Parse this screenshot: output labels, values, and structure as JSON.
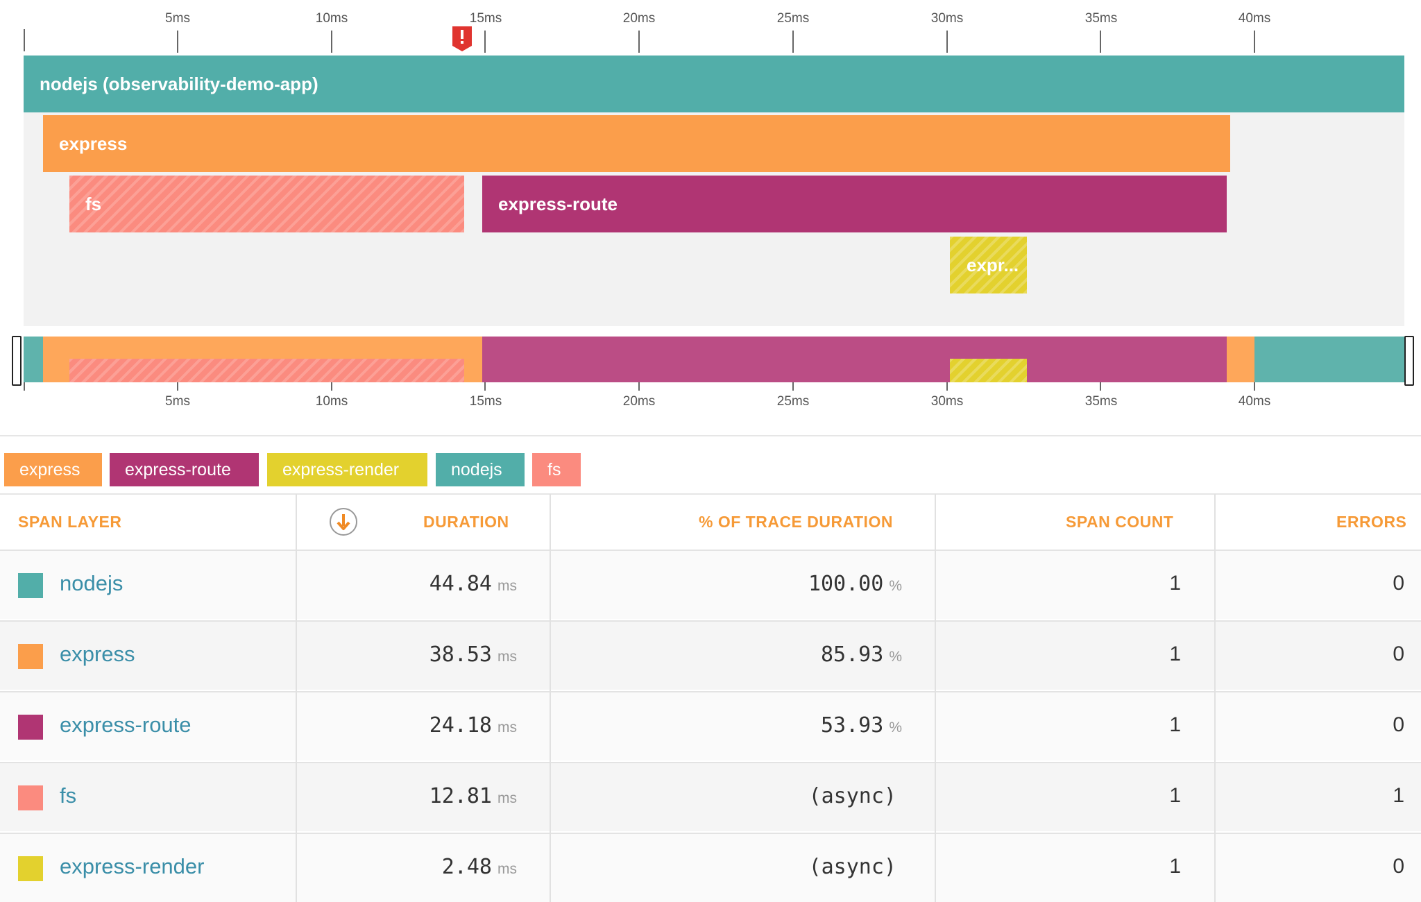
{
  "timeline": {
    "top_ticks": [
      "5ms",
      "10ms",
      "15ms",
      "20ms",
      "25ms",
      "30ms",
      "35ms",
      "40ms"
    ],
    "bottom_ticks": [
      "5ms",
      "10ms",
      "15ms",
      "20ms",
      "25ms",
      "30ms",
      "35ms",
      "40ms"
    ],
    "error_marker": "!"
  },
  "spans": {
    "nodejs": "nodejs (observability-demo-app)",
    "express": "express",
    "fs": "fs",
    "express_route": "express-route",
    "express_render": "expr..."
  },
  "legend": [
    {
      "label": "express",
      "color": "#fb9e4b"
    },
    {
      "label": "express-route",
      "color": "#b03573"
    },
    {
      "label": "express-render",
      "color": "#e3d12e"
    },
    {
      "label": "nodejs",
      "color": "#52aea9"
    },
    {
      "label": "fs",
      "color": "#fb8b7f"
    }
  ],
  "table": {
    "headers": {
      "span_layer": "SPAN LAYER",
      "duration": "DURATION",
      "pct": "% OF TRACE DURATION",
      "span_count": "SPAN COUNT",
      "errors": "ERRORS"
    },
    "rows": [
      {
        "name": "nodejs",
        "color": "#52aea9",
        "duration": "44.84",
        "duration_unit": "ms",
        "pct": "100.00",
        "pct_unit": "%",
        "span_count": "1",
        "errors": "0"
      },
      {
        "name": "express",
        "color": "#fb9e4b",
        "duration": "38.53",
        "duration_unit": "ms",
        "pct": "85.93",
        "pct_unit": "%",
        "span_count": "1",
        "errors": "0"
      },
      {
        "name": "express-route",
        "color": "#b03573",
        "duration": "24.18",
        "duration_unit": "ms",
        "pct": "53.93",
        "pct_unit": "%",
        "span_count": "1",
        "errors": "0"
      },
      {
        "name": "fs",
        "color": "#fb8b7f",
        "duration": "12.81",
        "duration_unit": "ms",
        "pct": "(async)",
        "pct_unit": "",
        "span_count": "1",
        "errors": "1"
      },
      {
        "name": "express-render",
        "color": "#e3d12e",
        "duration": "2.48",
        "duration_unit": "ms",
        "pct": "(async)",
        "pct_unit": "",
        "span_count": "1",
        "errors": "0"
      }
    ]
  }
}
